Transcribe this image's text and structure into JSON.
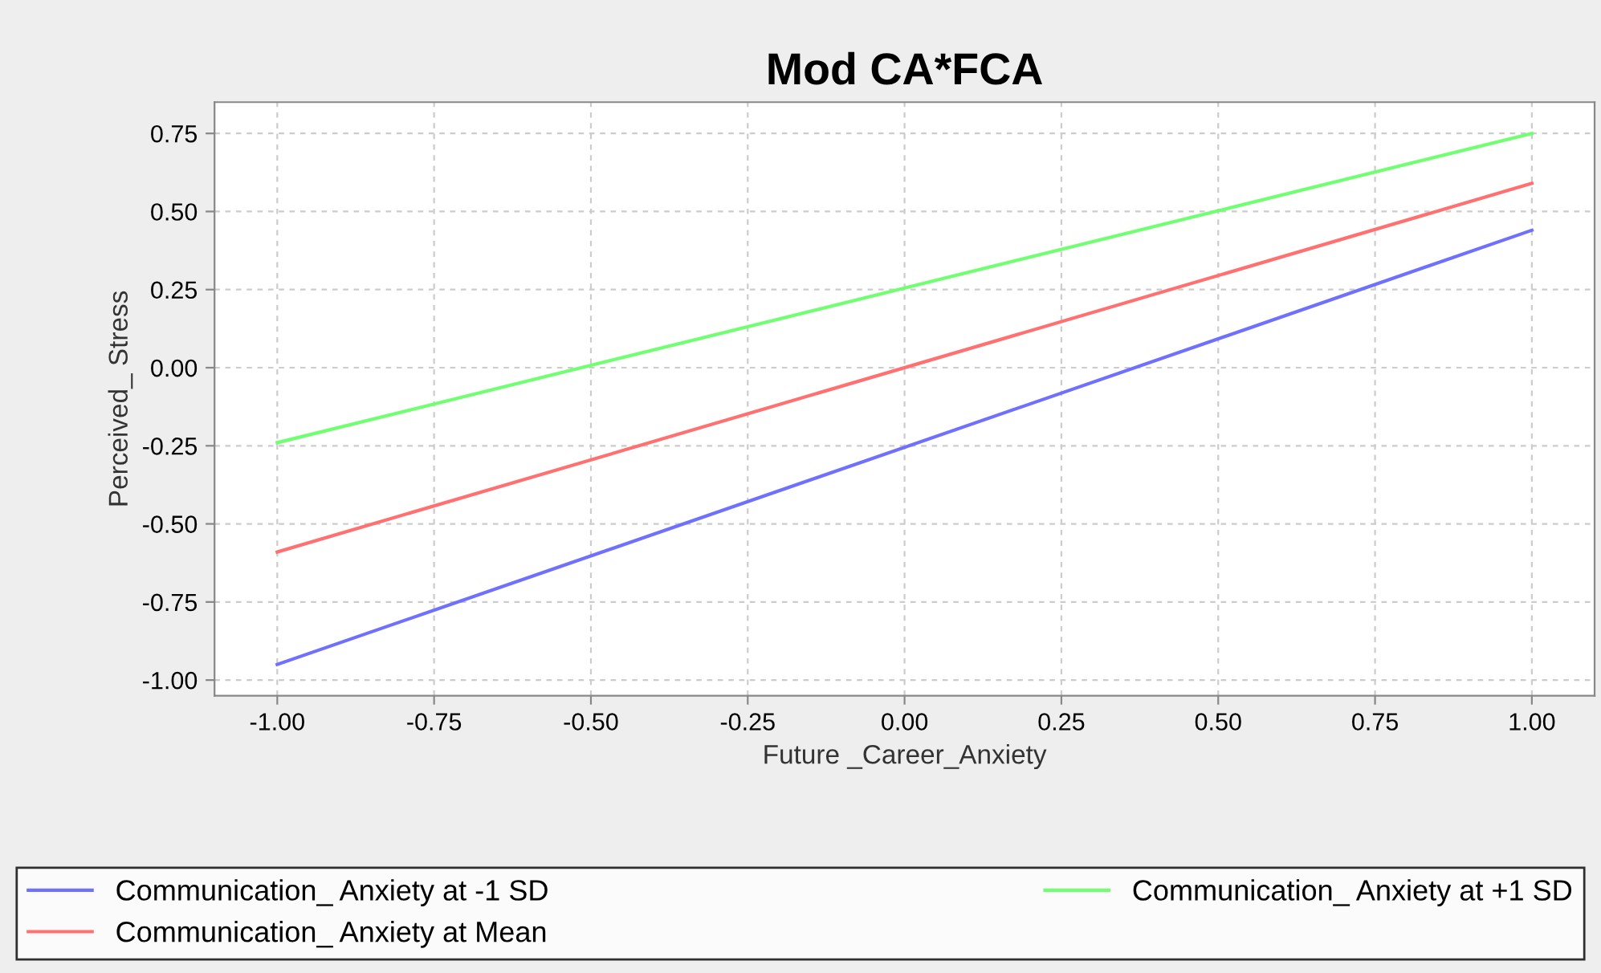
{
  "chart_data": {
    "type": "line",
    "title": "Mod CA*FCA",
    "xlabel": "Future _Career_Anxiety",
    "ylabel": "Perceived_ Stress",
    "x": [
      -1.0,
      1.0
    ],
    "series": [
      {
        "name": "Communication_ Anxiety at -1 SD",
        "color": "#7070ff",
        "values": [
          -0.95,
          0.44
        ]
      },
      {
        "name": "Communication_ Anxiety at Mean",
        "color": "#ff7070",
        "values": [
          -0.59,
          0.59
        ]
      },
      {
        "name": "Communication_ Anxiety at +1 SD",
        "color": "#70ff70",
        "values": [
          -0.24,
          0.75
        ]
      }
    ],
    "xlim": [
      -1.1,
      1.1
    ],
    "xticks": [
      {
        "value": -1.0,
        "label": "-1.00"
      },
      {
        "value": -0.75,
        "label": "-0.75"
      },
      {
        "value": -0.5,
        "label": "-0.50"
      },
      {
        "value": -0.25,
        "label": "-0.25"
      },
      {
        "value": 0.0,
        "label": "0.00"
      },
      {
        "value": 0.25,
        "label": "0.25"
      },
      {
        "value": 0.5,
        "label": "0.50"
      },
      {
        "value": 0.75,
        "label": "0.75"
      },
      {
        "value": 1.0,
        "label": "1.00"
      }
    ],
    "ylim": [
      -1.05,
      0.85
    ],
    "yticks": [
      {
        "value": -1.0,
        "label": "-1.00"
      },
      {
        "value": -0.75,
        "label": "-0.75"
      },
      {
        "value": -0.5,
        "label": "-0.50"
      },
      {
        "value": -0.25,
        "label": "-0.25"
      },
      {
        "value": 0.0,
        "label": "0.00"
      },
      {
        "value": 0.25,
        "label": "0.25"
      },
      {
        "value": 0.5,
        "label": "0.50"
      },
      {
        "value": 0.75,
        "label": "0.75"
      }
    ],
    "grid": true,
    "legend": "bottom",
    "marker": "none",
    "line_style": "solid"
  }
}
